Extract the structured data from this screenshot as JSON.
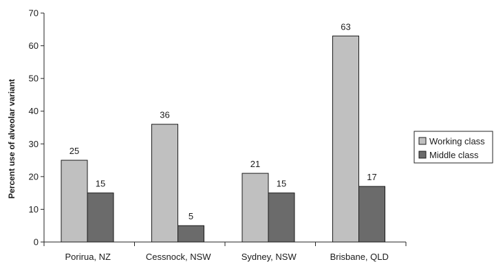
{
  "chart_data": {
    "type": "bar",
    "title": "",
    "xlabel": "",
    "ylabel": "Percent use of alveolar variant",
    "ylim": [
      0,
      70
    ],
    "yticks": [
      0,
      10,
      20,
      30,
      40,
      50,
      60,
      70
    ],
    "grid": false,
    "legend_position": "right",
    "categories": [
      "Porirua, NZ",
      "Cessnock, NSW",
      "Sydney, NSW",
      "Brisbane, QLD"
    ],
    "series": [
      {
        "name": "Working class",
        "values": [
          25,
          36,
          21,
          63
        ],
        "color": "#c0c0c0"
      },
      {
        "name": "Middle class",
        "values": [
          15,
          5,
          15,
          17
        ],
        "color": "#6b6b6b"
      }
    ]
  }
}
